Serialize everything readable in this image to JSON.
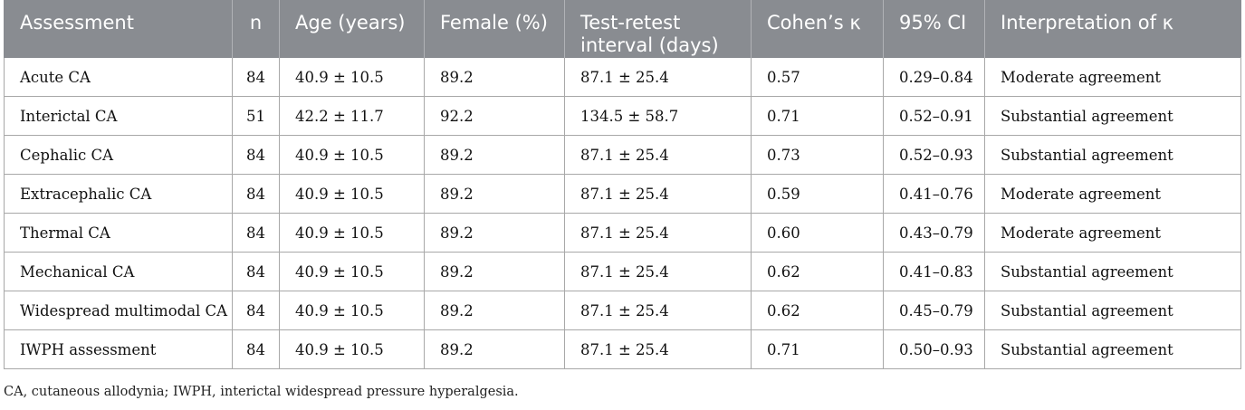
{
  "table": {
    "headers": [
      "Assessment",
      "n",
      "Age (years)",
      "Female (%)",
      "Test-retest interval (days)",
      "Cohen’s κ",
      "95% CI",
      "Interpretation of κ"
    ],
    "rows": [
      [
        "Acute CA",
        "84",
        "40.9 ± 10.5",
        "89.2",
        "87.1 ± 25.4",
        "0.57",
        "0.29–0.84",
        "Moderate agreement"
      ],
      [
        "Interictal CA",
        "51",
        "42.2 ± 11.7",
        "92.2",
        "134.5 ± 58.7",
        "0.71",
        "0.52–0.91",
        "Substantial agreement"
      ],
      [
        "Cephalic CA",
        "84",
        "40.9 ± 10.5",
        "89.2",
        "87.1 ± 25.4",
        "0.73",
        "0.52–0.93",
        "Substantial agreement"
      ],
      [
        "Extracephalic CA",
        "84",
        "40.9 ± 10.5",
        "89.2",
        "87.1 ± 25.4",
        "0.59",
        "0.41–0.76",
        "Moderate agreement"
      ],
      [
        "Thermal CA",
        "84",
        "40.9 ± 10.5",
        "89.2",
        "87.1 ± 25.4",
        "0.60",
        "0.43–0.79",
        "Moderate agreement"
      ],
      [
        "Mechanical CA",
        "84",
        "40.9 ± 10.5",
        "89.2",
        "87.1 ± 25.4",
        "0.62",
        "0.41–0.83",
        "Substantial agreement"
      ],
      [
        "Widespread multimodal CA",
        "84",
        "40.9 ± 10.5",
        "89.2",
        "87.1 ± 25.4",
        "0.62",
        "0.45–0.79",
        "Substantial agreement"
      ],
      [
        "IWPH assessment",
        "84",
        "40.9 ± 10.5",
        "89.2",
        "87.1 ± 25.4",
        "0.71",
        "0.50–0.93",
        "Substantial agreement"
      ]
    ]
  },
  "footnote": "CA, cutaneous allodynia; IWPH, interictal widespread pressure hyperalgesia.",
  "colors": {
    "header_background": "#898c91",
    "header_text": "#ffffff",
    "grid_line": "#a8a8a8"
  }
}
